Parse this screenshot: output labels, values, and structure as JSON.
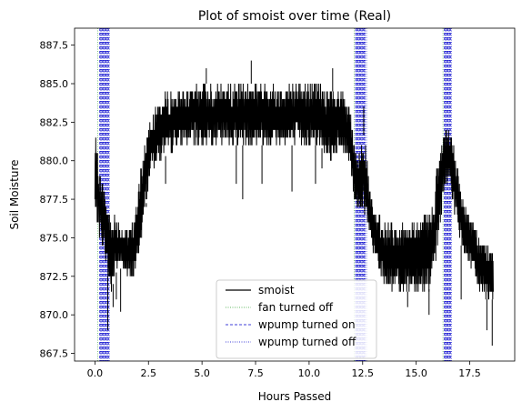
{
  "chart_data": {
    "type": "line",
    "title": "Plot of smoist over time (Real)",
    "xlabel": "Hours Passed",
    "ylabel": "Soil Moisture",
    "xlim": [
      -0.95,
      19.6
    ],
    "ylim": [
      867.0,
      888.6
    ],
    "xticks": [
      0.0,
      2.5,
      5.0,
      7.5,
      10.0,
      12.5,
      15.0,
      17.5
    ],
    "xtick_labels": [
      "0.0",
      "2.5",
      "5.0",
      "7.5",
      "10.0",
      "12.5",
      "15.0",
      "17.5"
    ],
    "yticks": [
      867.5,
      870.0,
      872.5,
      875.0,
      877.5,
      880.0,
      882.5,
      885.0,
      887.5
    ],
    "ytick_labels": [
      "867.5",
      "870.0",
      "872.5",
      "875.0",
      "877.5",
      "880.0",
      "882.5",
      "885.0",
      "887.5"
    ],
    "grid": false,
    "legend_position": "lower-center",
    "series": [
      {
        "name": "smoist",
        "color": "#000000",
        "style": "solid",
        "envelope": {
          "x": [
            0.0,
            0.15,
            0.3,
            0.45,
            0.6,
            0.75,
            0.9,
            1.1,
            1.3,
            1.5,
            1.7,
            1.9,
            2.1,
            2.3,
            2.5,
            2.7,
            3.0,
            3.5,
            4.0,
            5.0,
            6.0,
            7.0,
            8.0,
            9.0,
            10.0,
            10.5,
            11.0,
            11.5,
            11.9,
            12.1,
            12.3,
            12.5,
            12.65,
            12.8,
            13.0,
            13.2,
            13.5,
            14.0,
            14.5,
            15.0,
            15.5,
            15.8,
            16.0,
            16.2,
            16.4,
            16.6,
            16.8,
            17.0,
            17.2,
            17.5,
            17.8,
            18.0,
            18.3,
            18.6
          ],
          "low": [
            876.0,
            875.5,
            874.5,
            874.0,
            872.5,
            871.0,
            872.5,
            873.0,
            873.0,
            872.5,
            872.0,
            872.5,
            874.0,
            876.0,
            878.5,
            879.5,
            880.0,
            880.5,
            881.0,
            881.0,
            881.0,
            881.0,
            881.0,
            881.0,
            881.0,
            881.0,
            880.0,
            880.5,
            880.0,
            877.5,
            876.5,
            877.0,
            876.0,
            875.0,
            874.0,
            873.0,
            872.0,
            871.5,
            871.5,
            871.5,
            871.5,
            872.0,
            874.0,
            877.0,
            878.5,
            878.5,
            876.5,
            875.0,
            874.0,
            873.0,
            872.0,
            871.5,
            871.0,
            871.0
          ],
          "high": [
            882.0,
            880.0,
            879.0,
            878.0,
            877.5,
            876.5,
            876.5,
            876.0,
            875.5,
            875.5,
            876.0,
            877.0,
            879.0,
            881.0,
            882.5,
            883.5,
            884.0,
            884.5,
            884.5,
            885.0,
            885.0,
            885.0,
            885.0,
            885.0,
            885.0,
            885.0,
            884.5,
            884.5,
            883.5,
            881.0,
            880.5,
            882.0,
            881.0,
            878.5,
            877.0,
            876.5,
            876.0,
            876.0,
            876.0,
            876.5,
            876.5,
            877.5,
            880.0,
            881.5,
            882.0,
            882.0,
            880.5,
            879.0,
            877.5,
            876.5,
            875.5,
            875.0,
            874.5,
            874.0
          ]
        },
        "spikes": [
          {
            "x": 0.6,
            "y": 869.0
          },
          {
            "x": 0.85,
            "y": 870.5
          },
          {
            "x": 1.0,
            "y": 871.0
          },
          {
            "x": 1.2,
            "y": 870.2
          },
          {
            "x": 2.4,
            "y": 877.0
          },
          {
            "x": 3.3,
            "y": 878.5
          },
          {
            "x": 5.2,
            "y": 886.0
          },
          {
            "x": 6.6,
            "y": 878.5
          },
          {
            "x": 6.9,
            "y": 877.5
          },
          {
            "x": 7.3,
            "y": 886.5
          },
          {
            "x": 7.8,
            "y": 878.5
          },
          {
            "x": 9.2,
            "y": 878.0
          },
          {
            "x": 10.3,
            "y": 878.5
          },
          {
            "x": 10.6,
            "y": 879.5
          },
          {
            "x": 11.1,
            "y": 886.0
          },
          {
            "x": 12.55,
            "y": 883.5
          },
          {
            "x": 14.6,
            "y": 870.5
          },
          {
            "x": 15.6,
            "y": 870.0
          },
          {
            "x": 17.1,
            "y": 871.0
          },
          {
            "x": 18.3,
            "y": 869.0
          },
          {
            "x": 18.55,
            "y": 868.0
          }
        ]
      },
      {
        "name": "fan turned off",
        "color": "#2ca02c",
        "style": "dotted",
        "vlines": [
          0.13,
          12.1,
          16.25
        ]
      },
      {
        "name": "wpump turned on",
        "color": "#0000cc",
        "style": "dashed",
        "vlines": [
          0.22,
          0.28,
          0.34,
          0.4,
          0.46,
          0.52,
          0.58,
          0.64,
          12.17,
          12.23,
          12.29,
          12.35,
          12.41,
          12.47,
          12.53,
          12.59,
          16.31,
          16.37,
          16.43,
          16.49,
          16.55,
          16.61
        ]
      },
      {
        "name": "wpump turned off",
        "color": "#0000cc",
        "style": "dotted",
        "vlines": [
          0.25,
          0.31,
          0.37,
          0.43,
          0.49,
          0.55,
          0.61,
          0.67,
          12.2,
          12.26,
          12.32,
          12.38,
          12.44,
          12.5,
          12.56,
          12.62,
          12.68,
          16.34,
          16.4,
          16.46,
          16.52,
          16.58,
          16.64
        ]
      }
    ]
  }
}
